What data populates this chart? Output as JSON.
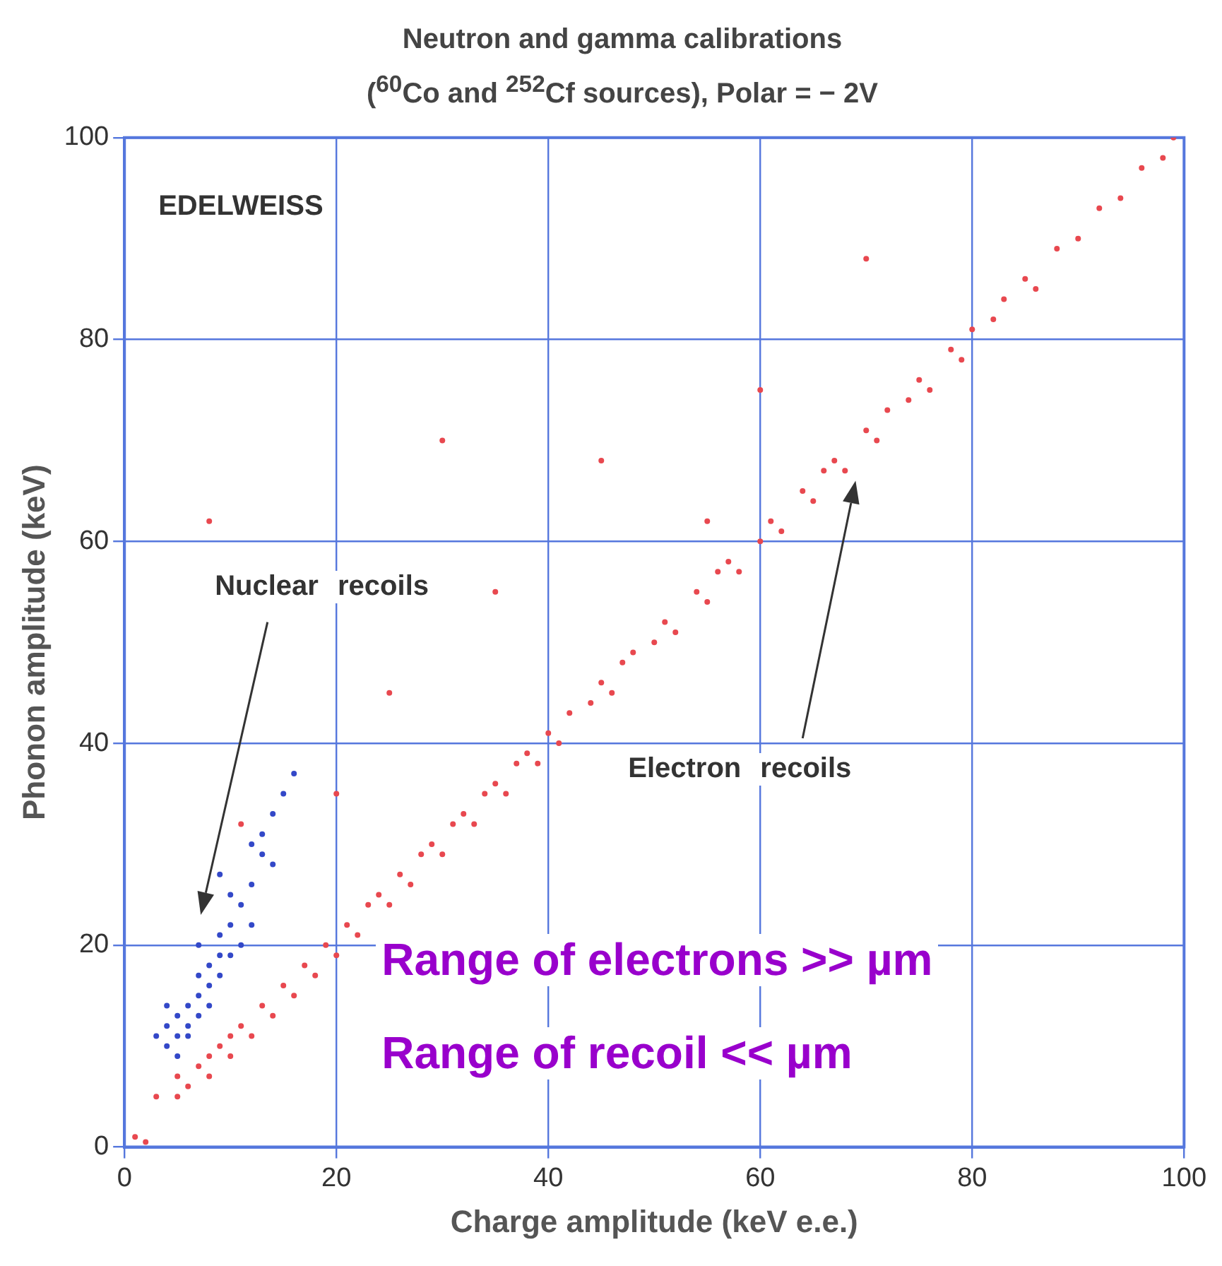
{
  "chart_data": {
    "type": "scatter",
    "title": "Neutron and gamma calibrations",
    "subtitle": "($^{60}$Co and $^{252}$Cf sources), Polar = − 2V",
    "xlabel": "Charge amplitude (keV e.e.)",
    "ylabel": "Phonon amplitude (keV)",
    "xlim": [
      0,
      100
    ],
    "ylim": [
      0,
      100
    ],
    "xticks": [
      0,
      20,
      40,
      60,
      80,
      100
    ],
    "yticks": [
      0,
      20,
      40,
      60,
      80,
      100
    ],
    "grid": true,
    "marker": "circle",
    "annotations": [
      "EDELWEISS",
      "Nuclear recoils",
      "Electron recoils",
      "Range of electrons >> µm",
      "Range of recoil << µm"
    ],
    "series": [
      {
        "color": "#e8484f",
        "x": [
          1,
          2,
          3,
          5,
          5,
          6,
          7,
          8,
          8,
          9,
          10,
          10,
          11,
          12,
          13,
          14,
          15,
          16,
          17,
          18,
          19,
          20,
          21,
          22,
          23,
          24,
          25,
          26,
          27,
          28,
          29,
          30,
          31,
          32,
          33,
          34,
          35,
          36,
          37,
          38,
          39,
          40,
          41,
          42,
          44,
          45,
          46,
          47,
          48,
          50,
          51,
          52,
          54,
          55,
          56,
          57,
          58,
          60,
          61,
          62,
          64,
          65,
          66,
          67,
          68,
          70,
          71,
          72,
          74,
          75,
          76,
          78,
          79,
          80,
          82,
          83,
          85,
          86,
          88,
          90,
          92,
          94,
          96,
          98,
          99,
          11,
          20,
          25,
          35,
          30,
          45,
          55,
          60,
          70,
          8
        ],
        "values": [
          1,
          0.5,
          5,
          5,
          7,
          6,
          8,
          7,
          9,
          10,
          9,
          11,
          12,
          11,
          14,
          13,
          16,
          15,
          18,
          17,
          20,
          19,
          22,
          21,
          24,
          25,
          24,
          27,
          26,
          29,
          30,
          29,
          32,
          33,
          32,
          35,
          36,
          35,
          38,
          39,
          38,
          41,
          40,
          43,
          44,
          46,
          45,
          48,
          49,
          50,
          52,
          51,
          55,
          54,
          57,
          58,
          57,
          60,
          62,
          61,
          65,
          64,
          67,
          68,
          67,
          71,
          70,
          73,
          74,
          76,
          75,
          79,
          78,
          81,
          82,
          84,
          86,
          85,
          89,
          90,
          93,
          94,
          97,
          98,
          100,
          32,
          35,
          45,
          55,
          70,
          68,
          62,
          75,
          88,
          62
        ]
      },
      {
        "color": "#3348c8",
        "x": [
          3,
          4,
          4,
          4,
          5,
          5,
          5,
          6,
          6,
          6,
          7,
          7,
          7,
          7,
          8,
          8,
          8,
          9,
          9,
          9,
          9,
          10,
          10,
          10,
          11,
          11,
          12,
          12,
          12,
          13,
          13,
          14,
          14,
          15,
          16
        ],
        "values": [
          11,
          10,
          12,
          14,
          9,
          11,
          13,
          11,
          12,
          14,
          13,
          15,
          17,
          20,
          14,
          16,
          18,
          17,
          19,
          21,
          27,
          19,
          22,
          25,
          20,
          24,
          22,
          26,
          30,
          29,
          31,
          28,
          33,
          35,
          37
        ]
      }
    ]
  }
}
